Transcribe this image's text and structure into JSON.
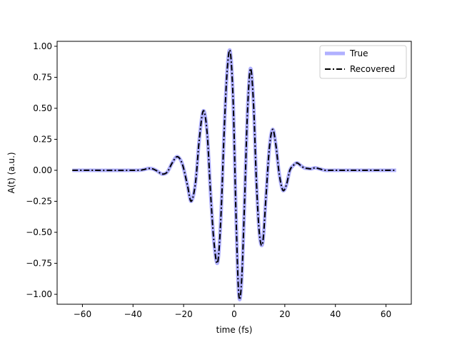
{
  "chart_data": {
    "type": "line",
    "title": "",
    "xlabel": "time (fs)",
    "ylabel": "A(t) (a.u.)",
    "xlim": [
      -70,
      70
    ],
    "ylim": [
      -1.08,
      1.04
    ],
    "xticks": [
      -60,
      -40,
      -20,
      0,
      20,
      40,
      60
    ],
    "xtick_labels": [
      "−60",
      "−40",
      "−20",
      "0",
      "20",
      "40",
      "60"
    ],
    "yticks": [
      -1.0,
      -0.75,
      -0.5,
      -0.25,
      0.0,
      0.25,
      0.5,
      0.75,
      1.0
    ],
    "ytick_labels": [
      "−1.00",
      "−0.75",
      "−0.50",
      "−0.25",
      "0.00",
      "0.25",
      "0.50",
      "0.75",
      "1.00"
    ],
    "grid": false,
    "legend_position": "top-right",
    "series": [
      {
        "name": "True",
        "color": "#b0b0ff",
        "style": "solid",
        "x": [
          -64,
          -40,
          -36,
          -34,
          -32.3,
          -30.5,
          -28.5,
          -26.5,
          -24.5,
          -22.5,
          -20.5,
          -18.5,
          -17,
          -15.3,
          -13.8,
          -12.2,
          -10.7,
          -9.3,
          -7.9,
          -6.5,
          -5.2,
          -4,
          -2.8,
          -1.6,
          -0.4,
          0.7,
          1.8,
          2.9,
          4.1,
          5.2,
          6.4,
          7.6,
          8.8,
          10,
          11.3,
          12.6,
          13.9,
          15.2,
          16.5,
          17.8,
          19.2,
          20.6,
          22,
          23.4,
          24.8,
          26.2,
          27.6,
          29,
          30.4,
          32,
          34,
          36,
          38,
          42,
          64
        ],
        "y": [
          0.0,
          0.0,
          0.005,
          0.015,
          0.012,
          -0.005,
          -0.03,
          -0.015,
          0.06,
          0.11,
          0.05,
          -0.12,
          -0.25,
          -0.1,
          0.25,
          0.48,
          0.3,
          -0.2,
          -0.6,
          -0.74,
          -0.35,
          0.3,
          0.8,
          0.96,
          0.55,
          -0.35,
          -1.0,
          -0.9,
          -0.25,
          0.45,
          0.82,
          0.55,
          -0.1,
          -0.52,
          -0.58,
          -0.2,
          0.18,
          0.33,
          0.2,
          -0.03,
          -0.16,
          -0.12,
          0.0,
          0.04,
          0.06,
          0.04,
          0.02,
          0.015,
          0.012,
          0.02,
          0.01,
          0.0,
          0.0,
          0.0,
          0.0
        ]
      },
      {
        "name": "Recovered",
        "color": "#000000",
        "style": "dash-dot",
        "x": [
          -64,
          -40,
          -36,
          -34,
          -32.3,
          -30.5,
          -28.5,
          -26.5,
          -24.5,
          -22.5,
          -20.5,
          -18.5,
          -17,
          -15.3,
          -13.8,
          -12.2,
          -10.7,
          -9.3,
          -7.9,
          -6.5,
          -5.2,
          -4,
          -2.8,
          -1.6,
          -0.4,
          0.7,
          1.8,
          2.9,
          4.1,
          5.2,
          6.4,
          7.6,
          8.8,
          10,
          11.3,
          12.6,
          13.9,
          15.2,
          16.5,
          17.8,
          19.2,
          20.6,
          22,
          23.4,
          24.8,
          26.2,
          27.6,
          29,
          30.4,
          32,
          34,
          36,
          38,
          42,
          64
        ],
        "y": [
          0.0,
          0.0,
          0.005,
          0.015,
          0.012,
          -0.005,
          -0.03,
          -0.015,
          0.06,
          0.11,
          0.05,
          -0.12,
          -0.25,
          -0.1,
          0.25,
          0.48,
          0.3,
          -0.2,
          -0.6,
          -0.74,
          -0.35,
          0.3,
          0.8,
          0.96,
          0.55,
          -0.35,
          -1.0,
          -0.9,
          -0.25,
          0.45,
          0.82,
          0.55,
          -0.1,
          -0.52,
          -0.58,
          -0.2,
          0.18,
          0.33,
          0.2,
          -0.03,
          -0.16,
          -0.12,
          0.0,
          0.04,
          0.06,
          0.04,
          0.02,
          0.015,
          0.012,
          0.02,
          0.01,
          0.0,
          0.0,
          0.0,
          0.0
        ]
      }
    ]
  }
}
